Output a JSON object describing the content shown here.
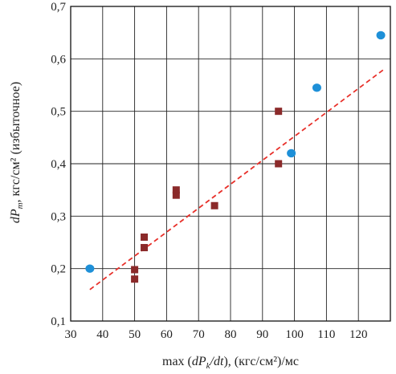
{
  "chart_data": {
    "type": "scatter",
    "xlabel": {
      "prefix": "max (",
      "dP": "dP",
      "sub": "k",
      "rest": "/dt",
      "suffix": "), (кгс/см²)/мс"
    },
    "ylabel": {
      "dP": "dP",
      "sub": "т",
      "suffix": ", кгс/см² (избыточное)"
    },
    "xlim": [
      30,
      130
    ],
    "ylim": [
      0.1,
      0.7
    ],
    "x_ticks": [
      30,
      40,
      50,
      60,
      70,
      80,
      90,
      100,
      110,
      120
    ],
    "y_ticks": [
      0.1,
      0.2,
      0.3,
      0.4,
      0.5,
      0.6,
      0.7
    ],
    "x_tick_labels": [
      "30",
      "40",
      "50",
      "60",
      "70",
      "80",
      "90",
      "100",
      "110",
      "120"
    ],
    "y_tick_labels": [
      "0,1",
      "0,2",
      "0,3",
      "0,4",
      "0,5",
      "0,6",
      "0,7"
    ],
    "grid": true,
    "series": [
      {
        "marker": "circle",
        "color": "#1e90d8",
        "points": [
          [
            36,
            0.2
          ],
          [
            99,
            0.42
          ],
          [
            107,
            0.545
          ],
          [
            127,
            0.645
          ]
        ]
      },
      {
        "marker": "square",
        "color": "#8b2a2a",
        "points": [
          [
            50,
            0.18
          ],
          [
            50,
            0.198
          ],
          [
            53,
            0.24
          ],
          [
            53,
            0.26
          ],
          [
            63,
            0.34
          ],
          [
            63,
            0.35
          ],
          [
            75,
            0.32
          ],
          [
            95,
            0.4
          ],
          [
            95,
            0.5
          ]
        ]
      }
    ],
    "trendline": {
      "style": "dashed",
      "color": "#e8302a",
      "points": [
        [
          36,
          0.16
        ],
        [
          128,
          0.58
        ]
      ]
    }
  }
}
